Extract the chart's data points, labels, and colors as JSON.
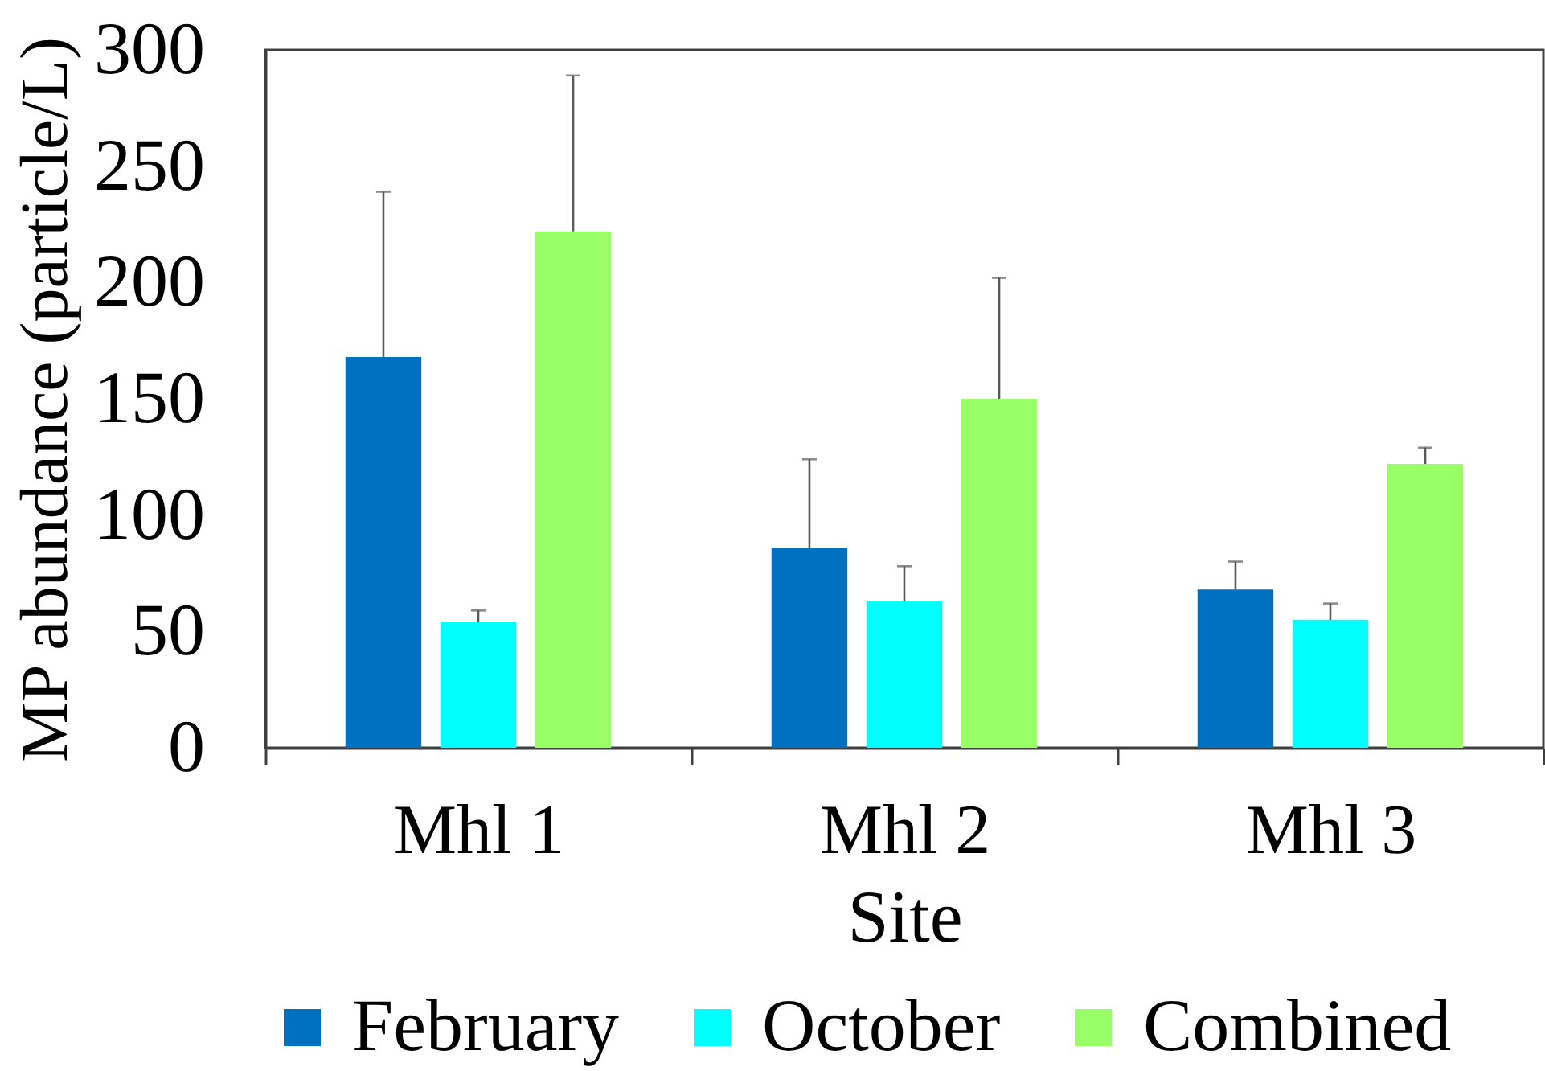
{
  "chart_data": {
    "type": "bar",
    "xlabel": "Site",
    "ylabel": "MP abundance (particle/L)",
    "categories": [
      "Mhl 1",
      "Mhl 2",
      "Mhl 3"
    ],
    "series": [
      {
        "name": "February",
        "color": "#0070c0",
        "values": [
          168,
          86,
          68
        ],
        "errors": [
          [
            168,
            239
          ],
          [
            86,
            124
          ],
          [
            68,
            80
          ]
        ]
      },
      {
        "name": "October",
        "color": "#00ffff",
        "values": [
          54,
          63,
          55
        ],
        "errors": [
          [
            54,
            59
          ],
          [
            63,
            78
          ],
          [
            55,
            62
          ]
        ]
      },
      {
        "name": "Combined",
        "color": "#99ff66",
        "values": [
          222,
          150,
          122
        ],
        "errors": [
          [
            222,
            289
          ],
          [
            150,
            202
          ],
          [
            122,
            129
          ]
        ]
      }
    ],
    "ylim": [
      0,
      300
    ],
    "yticks": [
      0,
      50,
      100,
      150,
      200,
      250,
      300
    ],
    "legend": "bottom"
  }
}
